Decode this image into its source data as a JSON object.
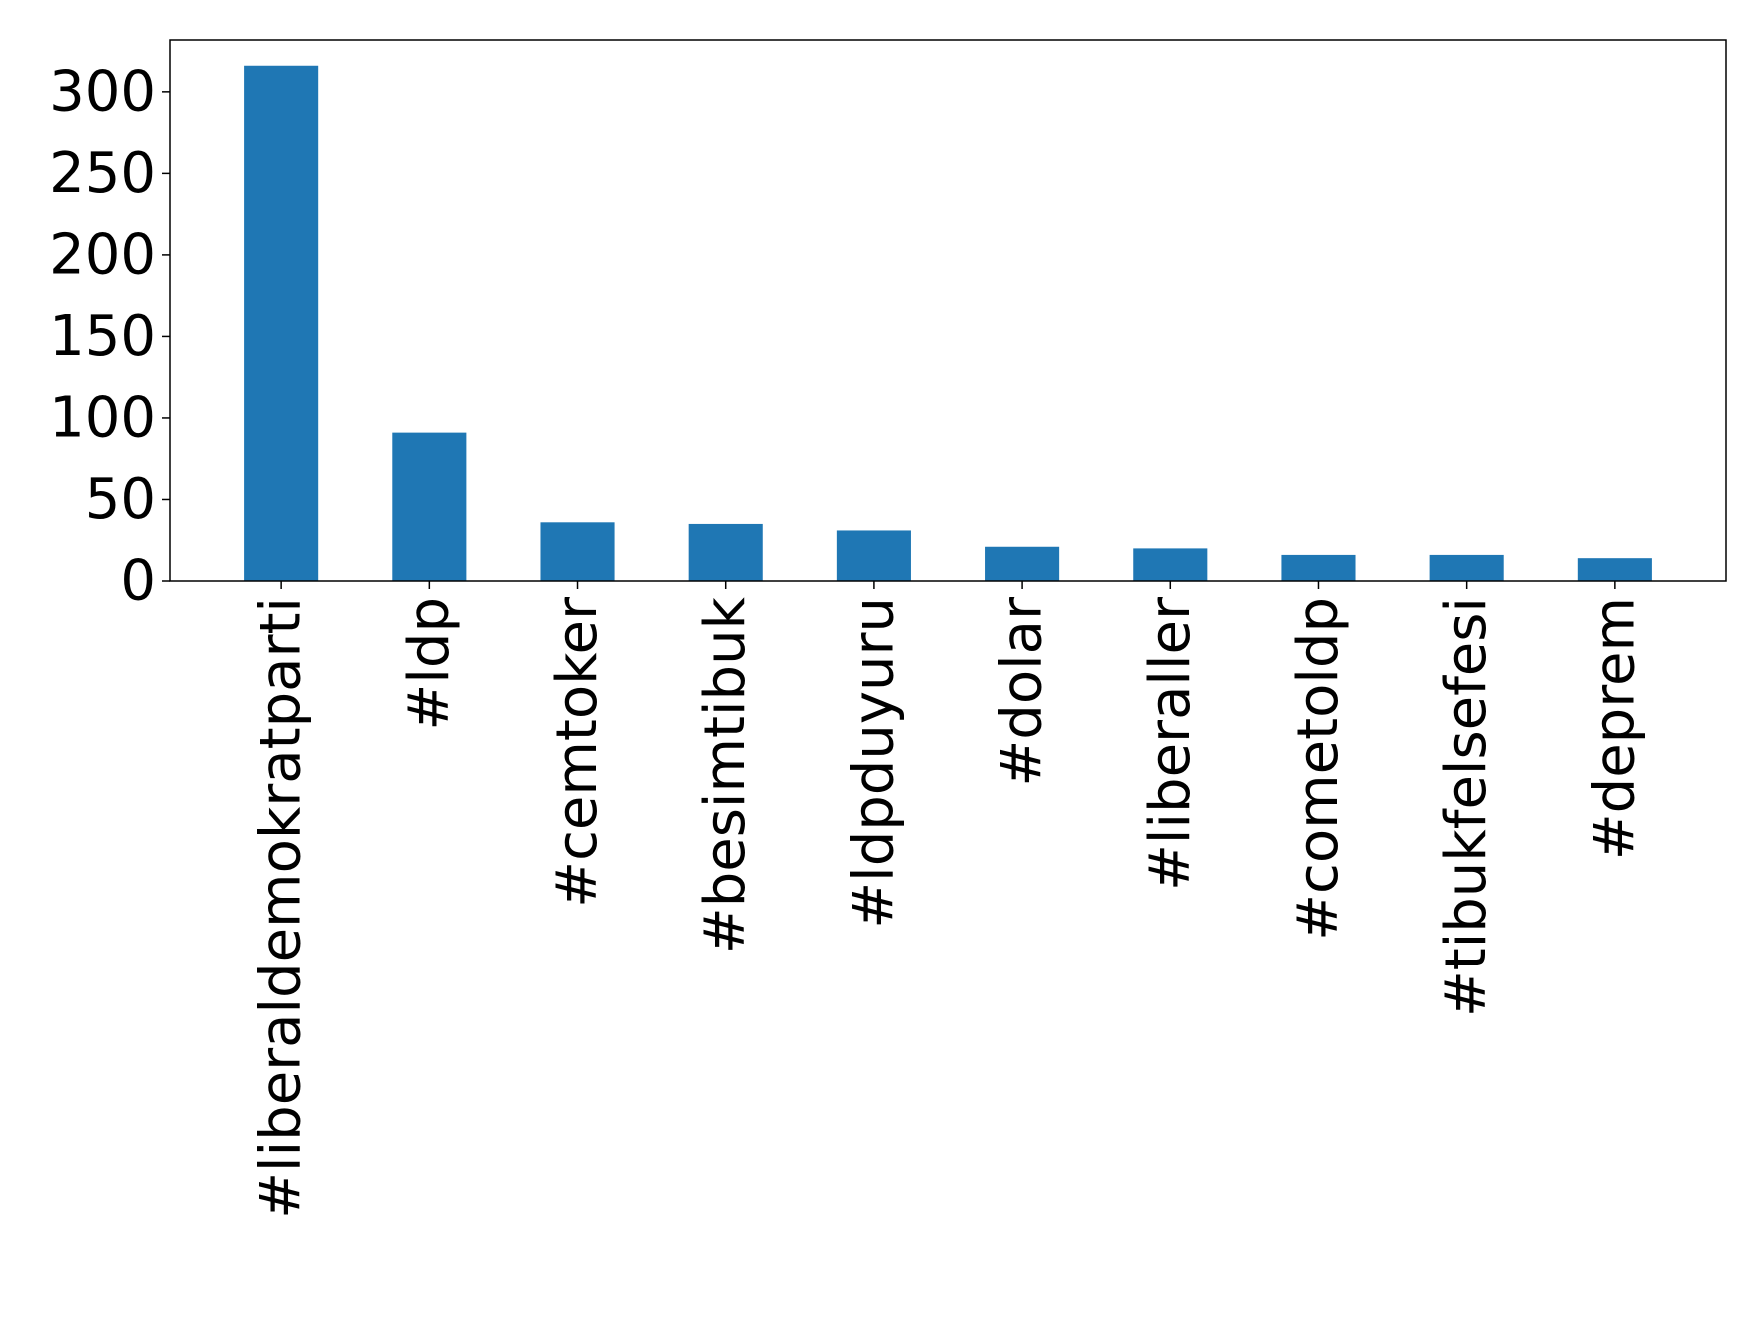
{
  "chart_data": {
    "type": "bar",
    "title": "",
    "xlabel": "",
    "ylabel": "",
    "categories": [
      "#liberaldemokratparti",
      "#ldp",
      "#cemtoker",
      "#besimtibuk",
      "#ldpduyuru",
      "#dolar",
      "#liberaller",
      "#cometoldp",
      "#tibukfelsefesi",
      "#deprem"
    ],
    "values": [
      316,
      91,
      36,
      35,
      31,
      21,
      20,
      16,
      16,
      14
    ],
    "ylim": [
      0,
      331.8
    ],
    "yticks": [
      0,
      50,
      100,
      150,
      200,
      250,
      300
    ],
    "grid": false,
    "legend": "none",
    "bar_color": "#1f77b4"
  }
}
